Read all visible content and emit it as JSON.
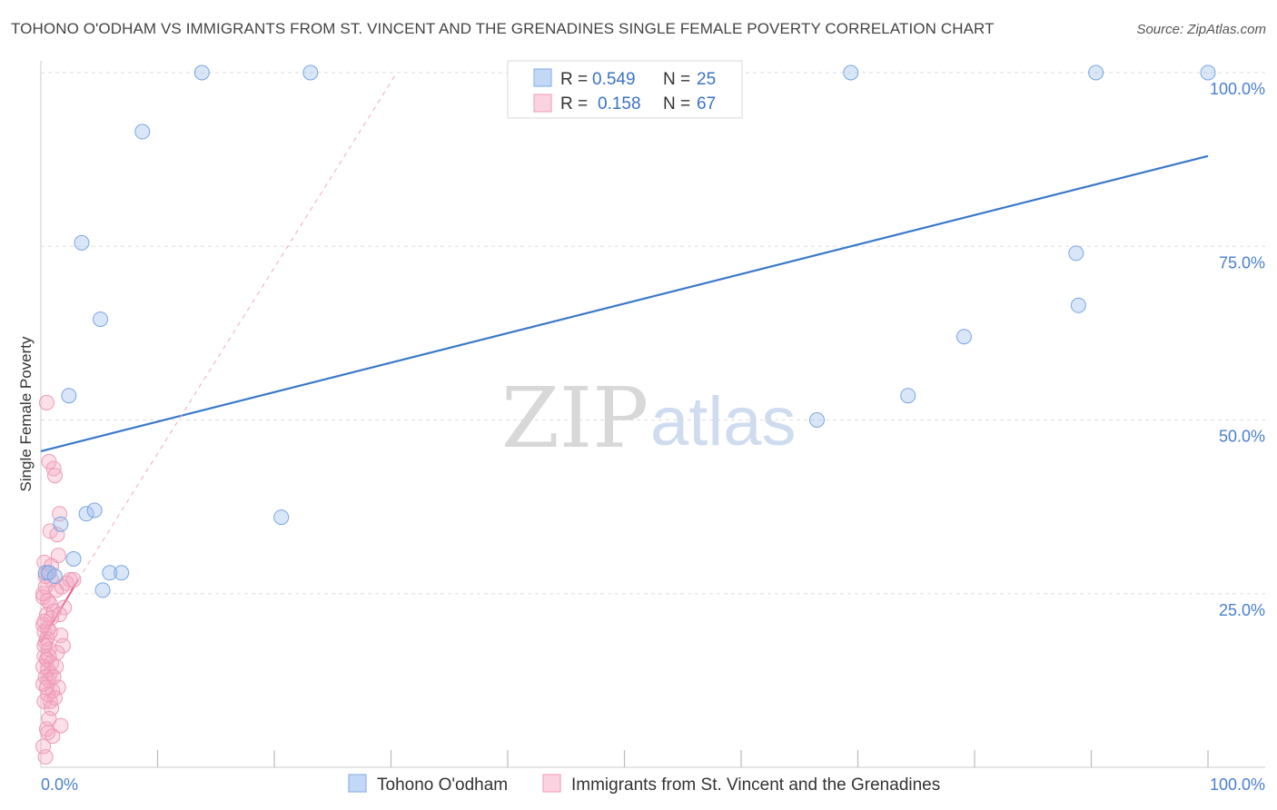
{
  "title": "TOHONO O'ODHAM VS IMMIGRANTS FROM ST. VINCENT AND THE GRENADINES SINGLE FEMALE POVERTY CORRELATION CHART",
  "source": "Source: ZipAtlas.com",
  "watermark": {
    "zip": "ZIP",
    "atlas": "atlas"
  },
  "colors": {
    "blue": "#8fb5ea",
    "blue_line": "#3a78c9",
    "pink": "#f3a6bf",
    "pink_line": "#e0608a",
    "grid": "#dddddd",
    "tick_text": "#4a7fcf"
  },
  "legend": {
    "r_label": "R =",
    "n_label": "N =",
    "series1": {
      "r": "0.549",
      "n": "25"
    },
    "series2": {
      "r": "0.158",
      "n": "67"
    }
  },
  "chart_data": {
    "type": "scatter",
    "title": "TOHONO O'ODHAM VS IMMIGRANTS FROM ST. VINCENT AND THE GRENADINES SINGLE FEMALE POVERTY CORRELATION CHART",
    "xlabel": "",
    "ylabel": "Single Female Poverty",
    "xlim": [
      0,
      100
    ],
    "ylim": [
      0,
      100
    ],
    "x_tick_labels": [
      "0.0%",
      "100.0%"
    ],
    "y_ticks": [
      25,
      50,
      75,
      100
    ],
    "y_tick_labels": [
      "25.0%",
      "50.0%",
      "75.0%",
      "100.0%"
    ],
    "grid": true,
    "series": [
      {
        "name": "Tohono O'odham",
        "color": "#8fb5ea",
        "trend": {
          "x0": 0,
          "y0": 45.5,
          "x1": 100,
          "y1": 88.0,
          "style": "solid"
        },
        "points": [
          [
            13.8,
            100
          ],
          [
            23.1,
            100
          ],
          [
            69.4,
            100
          ],
          [
            90.4,
            100
          ],
          [
            100,
            100
          ],
          [
            8.7,
            91.5
          ],
          [
            3.5,
            75.5
          ],
          [
            5.1,
            64.5
          ],
          [
            2.4,
            53.5
          ],
          [
            0.4,
            28.0
          ],
          [
            1.7,
            35.0
          ],
          [
            3.9,
            36.5
          ],
          [
            2.8,
            30.0
          ],
          [
            4.6,
            37.0
          ],
          [
            5.9,
            28.0
          ],
          [
            6.9,
            28.0
          ],
          [
            5.3,
            25.5
          ],
          [
            20.6,
            36.0
          ],
          [
            66.5,
            50.0
          ],
          [
            74.3,
            53.5
          ],
          [
            79.1,
            62.0
          ],
          [
            88.7,
            74.0
          ],
          [
            88.9,
            66.5
          ],
          [
            0.7,
            28.0
          ],
          [
            1.2,
            27.5
          ]
        ]
      },
      {
        "name": "Immigrants from St. Vincent and the Grenadines",
        "color": "#f3a6bf",
        "trend": {
          "x0": 0,
          "y0": 18.0,
          "x1": 3.2,
          "y1": 27.0,
          "style": "solid"
        },
        "trend_ext": {
          "x0": 3.2,
          "y0": 27.0,
          "x1": 30.5,
          "y1": 100.0,
          "style": "dashed"
        },
        "points": [
          [
            0.5,
            52.5
          ],
          [
            0.7,
            44.0
          ],
          [
            1.1,
            43.0
          ],
          [
            1.2,
            42.0
          ],
          [
            1.6,
            36.5
          ],
          [
            0.8,
            34.0
          ],
          [
            1.4,
            33.5
          ],
          [
            1.5,
            30.5
          ],
          [
            0.3,
            29.5
          ],
          [
            0.6,
            28.0
          ],
          [
            0.9,
            27.0
          ],
          [
            2.5,
            27.0
          ],
          [
            2.8,
            27.0
          ],
          [
            0.4,
            26.0
          ],
          [
            1.8,
            26.0
          ],
          [
            1.3,
            25.5
          ],
          [
            0.2,
            24.5
          ],
          [
            0.8,
            23.5
          ],
          [
            2.0,
            23.0
          ],
          [
            0.5,
            22.0
          ],
          [
            0.9,
            21.5
          ],
          [
            0.2,
            20.5
          ],
          [
            0.6,
            20.0
          ],
          [
            0.3,
            19.5
          ],
          [
            1.7,
            19.0
          ],
          [
            0.4,
            18.0
          ],
          [
            1.9,
            17.5
          ],
          [
            0.7,
            17.0
          ],
          [
            1.4,
            16.5
          ],
          [
            0.3,
            16.0
          ],
          [
            0.5,
            15.5
          ],
          [
            0.9,
            15.0
          ],
          [
            0.2,
            14.5
          ],
          [
            0.6,
            14.0
          ],
          [
            0.8,
            13.5
          ],
          [
            0.4,
            13.0
          ],
          [
            0.7,
            12.5
          ],
          [
            1.5,
            11.5
          ],
          [
            1.0,
            11.0
          ],
          [
            0.6,
            10.5
          ],
          [
            1.2,
            10.0
          ],
          [
            0.8,
            9.5
          ],
          [
            0.3,
            9.5
          ],
          [
            1.7,
            6.0
          ],
          [
            0.5,
            5.5
          ],
          [
            0.6,
            5.0
          ],
          [
            1.0,
            4.5
          ],
          [
            0.4,
            1.5
          ],
          [
            0.2,
            25.0
          ],
          [
            1.1,
            22.5
          ],
          [
            0.3,
            21.0
          ],
          [
            0.5,
            18.5
          ],
          [
            0.7,
            16.0
          ],
          [
            0.2,
            12.0
          ],
          [
            0.9,
            8.5
          ],
          [
            1.3,
            14.5
          ],
          [
            0.4,
            27.5
          ],
          [
            2.2,
            26.5
          ],
          [
            0.6,
            24.0
          ],
          [
            0.8,
            19.5
          ],
          [
            0.3,
            17.5
          ],
          [
            1.1,
            13.0
          ],
          [
            0.5,
            11.5
          ],
          [
            0.7,
            7.0
          ],
          [
            0.2,
            3.0
          ],
          [
            1.6,
            22.0
          ],
          [
            0.9,
            29.0
          ]
        ]
      }
    ]
  }
}
